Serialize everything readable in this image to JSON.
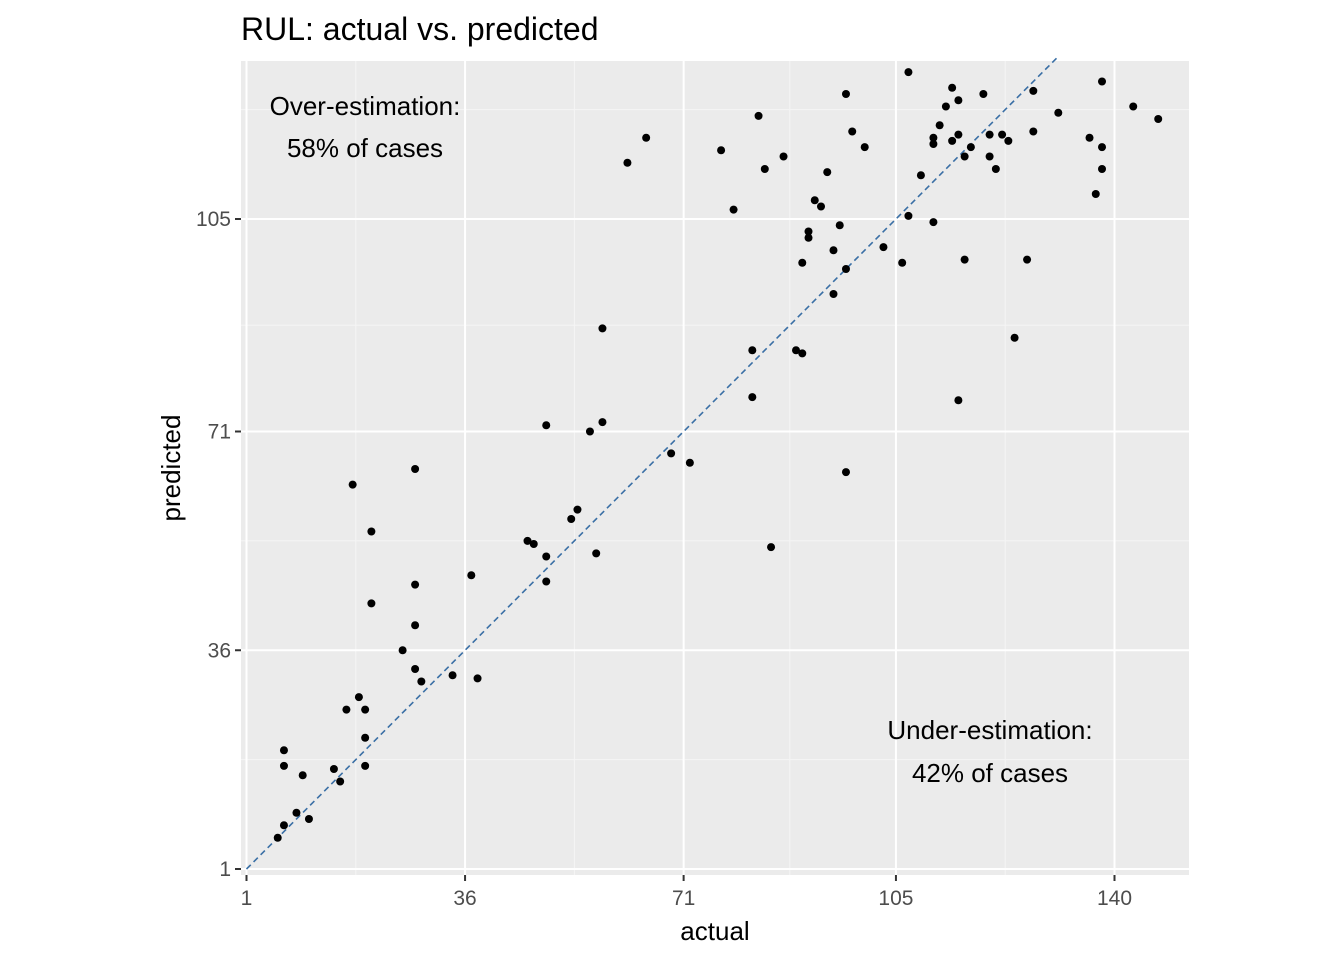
{
  "chart_data": {
    "type": "scatter",
    "title": "RUL: actual vs. predicted",
    "xlabel": "actual",
    "ylabel": "predicted",
    "xlim": [
      1,
      146
    ],
    "ylim": [
      1,
      131
    ],
    "x_ticks": [
      1,
      36,
      71,
      105,
      140
    ],
    "y_ticks": [
      1,
      36,
      71,
      105
    ],
    "grid": true,
    "reference_line": {
      "slope": 1,
      "intercept": 0,
      "style": "dashed",
      "color": "#3a6fa5"
    },
    "annotations": [
      {
        "id": "over",
        "lines": [
          "Over-estimation:",
          "58% of cases"
        ]
      },
      {
        "id": "under",
        "lines": [
          "Under-estimation:",
          "42% of cases"
        ]
      }
    ],
    "colors": {
      "panel": "#ebebeb",
      "grid_major": "#ffffff",
      "point": "#000000",
      "reference": "#3a6fa5"
    },
    "points": [
      [
        7,
        20
      ],
      [
        7,
        17.5
      ],
      [
        7,
        8
      ],
      [
        9,
        10
      ],
      [
        10,
        16
      ],
      [
        11,
        9
      ],
      [
        6,
        6
      ],
      [
        15,
        17
      ],
      [
        16,
        15
      ],
      [
        17,
        26.5
      ],
      [
        18,
        62.5
      ],
      [
        19,
        28.5
      ],
      [
        20,
        22
      ],
      [
        20,
        17.5
      ],
      [
        20,
        26.5
      ],
      [
        21,
        55
      ],
      [
        21,
        43.5
      ],
      [
        26,
        36
      ],
      [
        28,
        65
      ],
      [
        28,
        46.5
      ],
      [
        28,
        40
      ],
      [
        28,
        33
      ],
      [
        29,
        31
      ],
      [
        34,
        32
      ],
      [
        37,
        48
      ],
      [
        38,
        31.5
      ],
      [
        46,
        53.5
      ],
      [
        47,
        53
      ],
      [
        49,
        51
      ],
      [
        49,
        47
      ],
      [
        49,
        72
      ],
      [
        53,
        57
      ],
      [
        54,
        58.5
      ],
      [
        56,
        71
      ],
      [
        57,
        51.5
      ],
      [
        58,
        72.5
      ],
      [
        58,
        87.5
      ],
      [
        62,
        114
      ],
      [
        65,
        118
      ],
      [
        69,
        67.5
      ],
      [
        72,
        66
      ],
      [
        77,
        116
      ],
      [
        79,
        106.5
      ],
      [
        82,
        76.5
      ],
      [
        82,
        84
      ],
      [
        83,
        121.5
      ],
      [
        84,
        113
      ],
      [
        85,
        52.5
      ],
      [
        87,
        115
      ],
      [
        89,
        84
      ],
      [
        90,
        83.5
      ],
      [
        90,
        98
      ],
      [
        91,
        102
      ],
      [
        91,
        103
      ],
      [
        92,
        108
      ],
      [
        93,
        107
      ],
      [
        94,
        112.5
      ],
      [
        95,
        100
      ],
      [
        95,
        93
      ],
      [
        96,
        104
      ],
      [
        97,
        97
      ],
      [
        97,
        125
      ],
      [
        97,
        64.5
      ],
      [
        98,
        119
      ],
      [
        100,
        116.5
      ],
      [
        103,
        100.5
      ],
      [
        106,
        98
      ],
      [
        107,
        105.5
      ],
      [
        107,
        128.5
      ],
      [
        109,
        112
      ],
      [
        111,
        104.5
      ],
      [
        111,
        118
      ],
      [
        111,
        117
      ],
      [
        112,
        120
      ],
      [
        113,
        123
      ],
      [
        114,
        126
      ],
      [
        114,
        117.5
      ],
      [
        115,
        118.5
      ],
      [
        115,
        124
      ],
      [
        115,
        76
      ],
      [
        116,
        115
      ],
      [
        116,
        98.5
      ],
      [
        117,
        116.5
      ],
      [
        119,
        125
      ],
      [
        120,
        115
      ],
      [
        120,
        118.5
      ],
      [
        121,
        113
      ],
      [
        122,
        118.5
      ],
      [
        123,
        117.5
      ],
      [
        124,
        86
      ],
      [
        126,
        98.5
      ],
      [
        127,
        125.5
      ],
      [
        127,
        119
      ],
      [
        131,
        122
      ],
      [
        136,
        118
      ],
      [
        137,
        109
      ],
      [
        138,
        127
      ],
      [
        138,
        116.5
      ],
      [
        138,
        113
      ],
      [
        143,
        123
      ],
      [
        147,
        121
      ]
    ]
  }
}
